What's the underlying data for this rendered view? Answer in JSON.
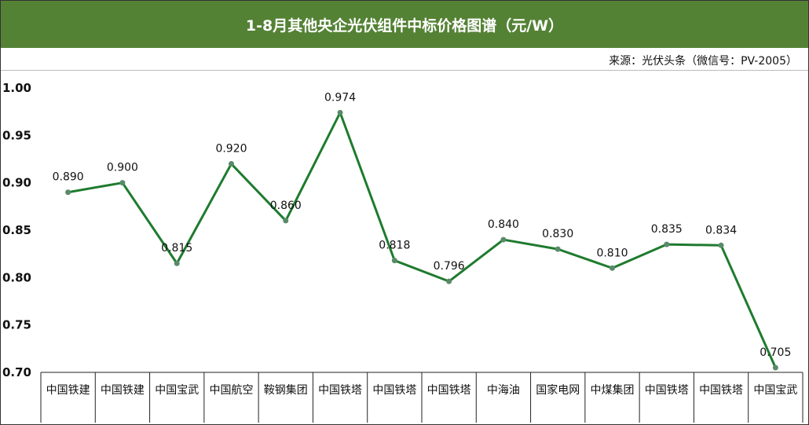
{
  "title": "1-8月其他央企光伏组件中标价格图谱（元/W）",
  "source": "来源：光伏头条（微信号：PV-2005）",
  "chart_data": {
    "type": "line",
    "title": "1-8月其他央企光伏组件中标价格图谱（元/W）",
    "categories": [
      "中国铁建",
      "中国铁建",
      "中国宝武",
      "中国航空",
      "鞍钢集团",
      "中国铁塔",
      "中国铁塔",
      "中国铁塔",
      "中海油",
      "国家电网",
      "中煤集团",
      "中国铁塔",
      "中国铁塔",
      "中国宝武"
    ],
    "series": [
      {
        "values": [
          0.89,
          0.9,
          0.815,
          0.92,
          0.86,
          0.974,
          0.818,
          0.796,
          0.84,
          0.83,
          0.81,
          0.835,
          0.834,
          0.705
        ]
      }
    ],
    "data_labels": [
      "0.890",
      "0.900",
      "0.815",
      "0.920",
      "0.860",
      "0.974",
      "0.818",
      "0.796",
      "0.840",
      "0.830",
      "0.810",
      "0.835",
      "0.834",
      "0.705"
    ],
    "yticks": [
      "1.00",
      "0.95",
      "0.90",
      "0.85",
      "0.80",
      "0.75",
      "0.70"
    ],
    "ylim": [
      0.7,
      1.0
    ],
    "line_color": "#1e7b2e",
    "marker_color": "#5a8a6a",
    "title_bg": "#548235",
    "grid": false,
    "legend": "none"
  }
}
